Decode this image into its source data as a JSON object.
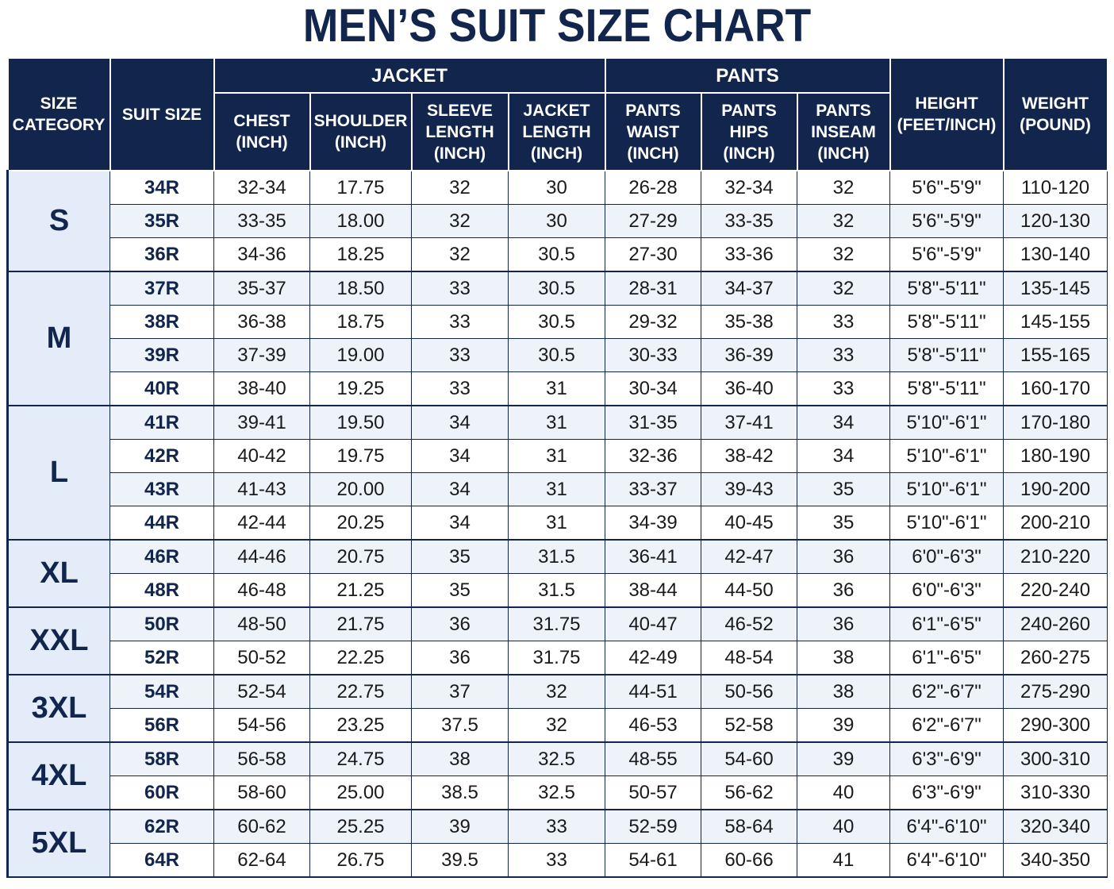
{
  "title": "MEN’S SUIT SIZE CHART",
  "headers": {
    "size_category": "SIZE CATEGORY",
    "suit_size": "SUIT SIZE",
    "jacket": "JACKET",
    "pants": "PANTS",
    "chest": "CHEST (INCH)",
    "shoulder": "SHOULDER (INCH)",
    "sleeve": "SLEEVE LENGTH (INCH)",
    "jacket_length": "JACKET LENGTH (INCH)",
    "waist": "PANTS WAIST (INCH)",
    "hips": "PANTS HIPS (INCH)",
    "inseam": "PANTS INSEAM (INCH)",
    "height": "HEIGHT (FEET/INCH)",
    "weight": "WEIGHT (POUND)"
  },
  "groups": [
    {
      "category": "S",
      "rows": [
        [
          "34R",
          "32-34",
          "17.75",
          "32",
          "30",
          "26-28",
          "32-34",
          "32",
          "5'6\"-5'9\"",
          "110-120"
        ],
        [
          "35R",
          "33-35",
          "18.00",
          "32",
          "30",
          "27-29",
          "33-35",
          "32",
          "5'6\"-5'9\"",
          "120-130"
        ],
        [
          "36R",
          "34-36",
          "18.25",
          "32",
          "30.5",
          "27-30",
          "33-36",
          "32",
          "5'6\"-5'9\"",
          "130-140"
        ]
      ]
    },
    {
      "category": "M",
      "rows": [
        [
          "37R",
          "35-37",
          "18.50",
          "33",
          "30.5",
          "28-31",
          "34-37",
          "32",
          "5'8\"-5'11\"",
          "135-145"
        ],
        [
          "38R",
          "36-38",
          "18.75",
          "33",
          "30.5",
          "29-32",
          "35-38",
          "33",
          "5'8\"-5'11\"",
          "145-155"
        ],
        [
          "39R",
          "37-39",
          "19.00",
          "33",
          "30.5",
          "30-33",
          "36-39",
          "33",
          "5'8\"-5'11\"",
          "155-165"
        ],
        [
          "40R",
          "38-40",
          "19.25",
          "33",
          "31",
          "30-34",
          "36-40",
          "33",
          "5'8\"-5'11\"",
          "160-170"
        ]
      ]
    },
    {
      "category": "L",
      "rows": [
        [
          "41R",
          "39-41",
          "19.50",
          "34",
          "31",
          "31-35",
          "37-41",
          "34",
          "5'10\"-6'1\"",
          "170-180"
        ],
        [
          "42R",
          "40-42",
          "19.75",
          "34",
          "31",
          "32-36",
          "38-42",
          "34",
          "5'10\"-6'1\"",
          "180-190"
        ],
        [
          "43R",
          "41-43",
          "20.00",
          "34",
          "31",
          "33-37",
          "39-43",
          "35",
          "5'10\"-6'1\"",
          "190-200"
        ],
        [
          "44R",
          "42-44",
          "20.25",
          "34",
          "31",
          "34-39",
          "40-45",
          "35",
          "5'10\"-6'1\"",
          "200-210"
        ]
      ]
    },
    {
      "category": "XL",
      "rows": [
        [
          "46R",
          "44-46",
          "20.75",
          "35",
          "31.5",
          "36-41",
          "42-47",
          "36",
          "6'0\"-6'3\"",
          "210-220"
        ],
        [
          "48R",
          "46-48",
          "21.25",
          "35",
          "31.5",
          "38-44",
          "44-50",
          "36",
          "6'0\"-6'3\"",
          "220-240"
        ]
      ]
    },
    {
      "category": "XXL",
      "rows": [
        [
          "50R",
          "48-50",
          "21.75",
          "36",
          "31.75",
          "40-47",
          "46-52",
          "36",
          "6'1\"-6'5\"",
          "240-260"
        ],
        [
          "52R",
          "50-52",
          "22.25",
          "36",
          "31.75",
          "42-49",
          "48-54",
          "38",
          "6'1\"-6'5\"",
          "260-275"
        ]
      ]
    },
    {
      "category": "3XL",
      "rows": [
        [
          "54R",
          "52-54",
          "22.75",
          "37",
          "32",
          "44-51",
          "50-56",
          "38",
          "6'2\"-6'7\"",
          "275-290"
        ],
        [
          "56R",
          "54-56",
          "23.25",
          "37.5",
          "32",
          "46-53",
          "52-58",
          "39",
          "6'2\"-6'7\"",
          "290-300"
        ]
      ]
    },
    {
      "category": "4XL",
      "rows": [
        [
          "58R",
          "56-58",
          "24.75",
          "38",
          "32.5",
          "48-55",
          "54-60",
          "39",
          "6'3\"-6'9\"",
          "300-310"
        ],
        [
          "60R",
          "58-60",
          "25.00",
          "38.5",
          "32.5",
          "50-57",
          "56-62",
          "40",
          "6'3\"-6'9\"",
          "310-330"
        ]
      ]
    },
    {
      "category": "5XL",
      "rows": [
        [
          "62R",
          "60-62",
          "25.25",
          "39",
          "33",
          "52-59",
          "58-64",
          "40",
          "6'4\"-6'10\"",
          "320-340"
        ],
        [
          "64R",
          "62-64",
          "26.75",
          "39.5",
          "33",
          "54-61",
          "60-66",
          "41",
          "6'4\"-6'10\"",
          "340-350"
        ]
      ]
    }
  ]
}
